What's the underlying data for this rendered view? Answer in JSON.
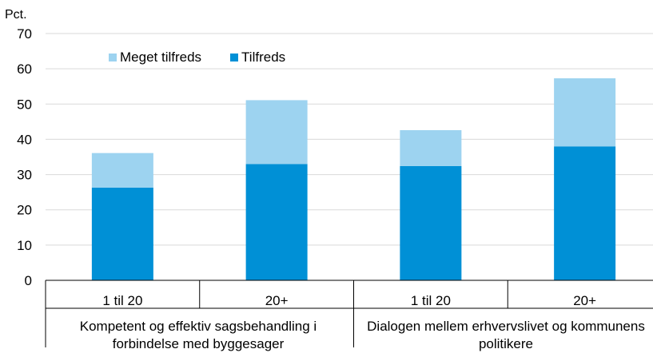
{
  "chart_data": {
    "type": "bar",
    "stacked": true,
    "ylabel": "Pct.",
    "ylim": [
      0,
      70
    ],
    "yticks": [
      0,
      10,
      20,
      30,
      40,
      50,
      60,
      70
    ],
    "grid": true,
    "legend_position": "top-left",
    "categories": [
      "1 til 20",
      "20+",
      "1 til 20",
      "20+"
    ],
    "groups": [
      {
        "label": "Kompetent og effektiv sagsbehandling i forbindelse med byggesager",
        "span": [
          0,
          1
        ]
      },
      {
        "label": "Dialogen mellem erhvervslivet og kommunens politikere",
        "span": [
          2,
          3
        ]
      }
    ],
    "series": [
      {
        "name": "Tilfreds",
        "color": "#0090d6",
        "values": [
          26.3,
          33.0,
          32.4,
          38.0
        ]
      },
      {
        "name": "Meget tilfreds",
        "color": "#9dd3f0",
        "values": [
          9.8,
          18.1,
          10.2,
          19.3
        ]
      }
    ]
  }
}
